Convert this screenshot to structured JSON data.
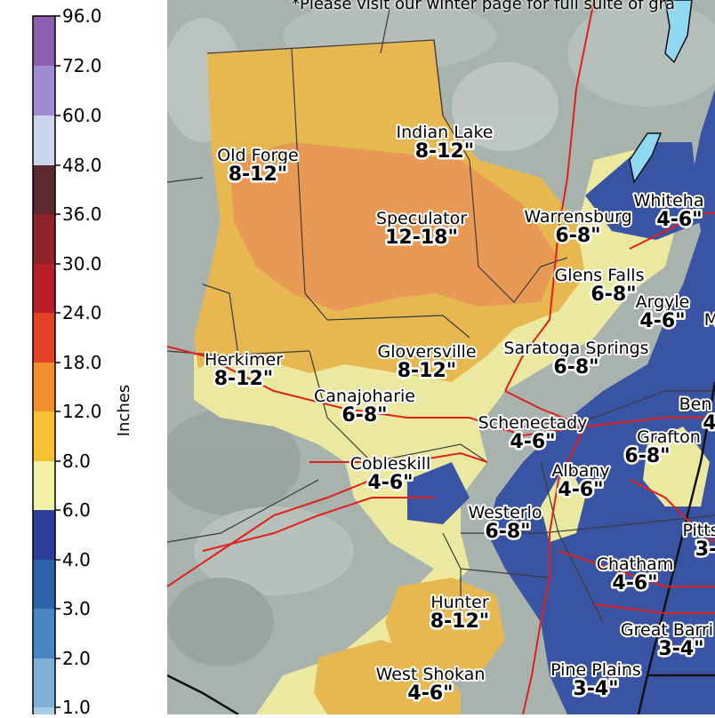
{
  "header_note": "*Please visit our winter page for full suite of gra",
  "colorbar": {
    "unit_label": "Inches",
    "ticks": [
      "96.0",
      "72.0",
      "60.0",
      "48.0",
      "36.0",
      "30.0",
      "24.0",
      "18.0",
      "12.0",
      "8.0",
      "6.0",
      "4.0",
      "3.0",
      "2.0",
      "1.0"
    ],
    "colors": [
      "#8f60b0",
      "#a08cd0",
      "#cdd6ef",
      "#5a2a2e",
      "#8e2329",
      "#b7202a",
      "#e34324",
      "#f0902a",
      "#f6c033",
      "#f0f0a6",
      "#2e3c9c",
      "#2c62a8",
      "#4a86c4",
      "#7fb0d8",
      "#a9cde6"
    ]
  },
  "map_colors": {
    "background": "#a9b3ae",
    "band_6_8": "#ebe9a0",
    "band_8_12": "#e8b850",
    "band_12_18": "#e89a55",
    "band_4_6": "#3a54a4",
    "roads": "#e0201e",
    "boundaries": "#333333"
  },
  "locations": [
    {
      "name": "Indian Lake",
      "range": "8-12\""
    },
    {
      "name": "Old Forge",
      "range": "8-12\""
    },
    {
      "name": "Speculator",
      "range": "12-18\""
    },
    {
      "name": "Warrensburg",
      "range": "6-8\""
    },
    {
      "name": "Whiteha",
      "range": "4-6\""
    },
    {
      "name": "Glens Falls",
      "range": "6-8\""
    },
    {
      "name": "Argyle",
      "range": "4-6\""
    },
    {
      "name": "Herkimer",
      "range": "8-12\""
    },
    {
      "name": "Gloversville",
      "range": "8-12\""
    },
    {
      "name": "Saratoga Springs",
      "range": "6-8\""
    },
    {
      "name": "Canajoharie",
      "range": "6-8\""
    },
    {
      "name": "Schenectady",
      "range": "4-6\""
    },
    {
      "name": "Ben",
      "range": "4"
    },
    {
      "name": "Grafton",
      "range": "6-8\""
    },
    {
      "name": "Cobleskill",
      "range": "4-6\""
    },
    {
      "name": "Albany",
      "range": "4-6\""
    },
    {
      "name": "Westerlo",
      "range": "6-8\""
    },
    {
      "name": "Pitts",
      "range": "3-"
    },
    {
      "name": "Chatham",
      "range": "4-6\""
    },
    {
      "name": "Hunter",
      "range": "8-12\""
    },
    {
      "name": "Great Barri",
      "range": "3-4\""
    },
    {
      "name": "West Shokan",
      "range": "4-6\""
    },
    {
      "name": "Pine Plains",
      "range": "3-4\""
    }
  ],
  "edge_letter": "M"
}
